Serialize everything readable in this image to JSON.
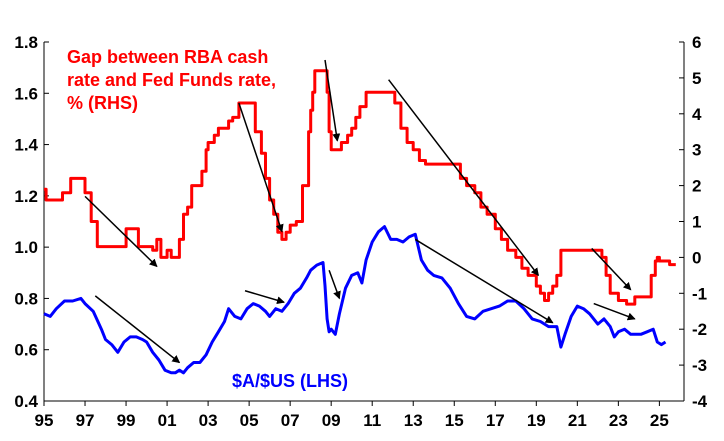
{
  "chart_data": {
    "type": "line",
    "x_ticks": [
      "95",
      "97",
      "99",
      "01",
      "03",
      "05",
      "07",
      "09",
      "11",
      "13",
      "15",
      "17",
      "19",
      "21",
      "23",
      "25"
    ],
    "x_tick_years": [
      1995,
      1997,
      1999,
      2001,
      2003,
      2005,
      2007,
      2009,
      2011,
      2013,
      2015,
      2017,
      2019,
      2021,
      2023,
      2025
    ],
    "xlim": [
      1995,
      2026.2
    ],
    "left_axis": {
      "ylim": [
        0.4,
        1.8
      ],
      "ticks": [
        "0.4",
        "0.6",
        "0.8",
        "1.0",
        "1.2",
        "1.4",
        "1.6",
        "1.8"
      ],
      "tick_values": [
        0.4,
        0.6,
        0.8,
        1.0,
        1.2,
        1.4,
        1.6,
        1.8
      ]
    },
    "right_axis": {
      "ylim": [
        -4,
        6
      ],
      "ticks": [
        "-4",
        "-3",
        "-2",
        "-1",
        "0",
        "1",
        "2",
        "3",
        "4",
        "5",
        "6"
      ],
      "tick_values": [
        -4,
        -3,
        -2,
        -1,
        0,
        1,
        2,
        3,
        4,
        5,
        6
      ]
    },
    "grid": false,
    "colors": {
      "gap": "#ff0000",
      "aud": "#0000ff",
      "arrows": "#000000"
    },
    "annotations": {
      "gap_label": [
        "Gap between RBA cash",
        "rate and Fed Funds rate,",
        "% (RHS)"
      ],
      "aud_label": "$A/$US (LHS)"
    },
    "series": [
      {
        "name": "Gap between RBA cash rate and Fed Funds rate, % (RHS)",
        "axis": "right",
        "x": [
          1995.0,
          1995.1,
          1995.3,
          1995.6,
          1995.9,
          1996.1,
          1996.3,
          1996.5,
          1996.6,
          1996.8,
          1997.0,
          1997.3,
          1997.6,
          1997.8,
          1998.0,
          1998.5,
          1998.8,
          1999.0,
          1999.3,
          1999.6,
          1999.9,
          2000.0,
          2000.3,
          2000.5,
          2000.7,
          2000.9,
          2001.0,
          2001.2,
          2001.4,
          2001.6,
          2001.8,
          2002.0,
          2002.2,
          2002.5,
          2002.7,
          2002.9,
          2003.0,
          2003.3,
          2003.5,
          2003.8,
          2004.0,
          2004.2,
          2004.5,
          2004.8,
          2005.0,
          2005.3,
          2005.6,
          2005.8,
          2006.0,
          2006.2,
          2006.4,
          2006.6,
          2006.8,
          2007.0,
          2007.3,
          2007.6,
          2007.9,
          2008.0,
          2008.1,
          2008.2,
          2008.3,
          2008.5,
          2008.7,
          2008.8,
          2008.9,
          2009.0,
          2009.2,
          2009.5,
          2009.8,
          2010.0,
          2010.2,
          2010.4,
          2010.7,
          2011.0,
          2011.5,
          2011.9,
          2012.1,
          2012.4,
          2012.7,
          2013.0,
          2013.3,
          2013.6,
          2014.0,
          2014.5,
          2015.0,
          2015.3,
          2015.6,
          2016.0,
          2016.3,
          2016.6,
          2017.0,
          2017.3,
          2017.6,
          2018.0,
          2018.3,
          2018.6,
          2019.0,
          2019.2,
          2019.4,
          2019.6,
          2019.8,
          2020.0,
          2020.2,
          2020.5,
          2021.0,
          2021.5,
          2022.0,
          2022.2,
          2022.4,
          2022.6,
          2022.8,
          2023.0,
          2023.2,
          2023.4,
          2023.6,
          2023.8,
          2024.0,
          2024.3,
          2024.6,
          2024.8,
          2024.9,
          2025.0,
          2025.2,
          2025.5,
          2025.8
        ],
        "values": [
          1.9,
          1.6,
          1.6,
          1.6,
          1.8,
          1.8,
          2.2,
          2.2,
          2.2,
          2.2,
          1.8,
          1.0,
          0.3,
          0.3,
          0.3,
          0.3,
          0.3,
          0.8,
          0.8,
          0.3,
          0.3,
          0.3,
          0.2,
          0.5,
          0.0,
          0.0,
          0.2,
          0.0,
          0.0,
          0.5,
          1.2,
          1.4,
          2.0,
          2.0,
          2.4,
          3.0,
          3.2,
          3.4,
          3.6,
          3.6,
          3.8,
          3.9,
          4.3,
          4.3,
          4.3,
          3.5,
          2.9,
          2.2,
          1.6,
          1.2,
          0.7,
          0.5,
          0.7,
          0.9,
          1.0,
          2.0,
          3.5,
          4.1,
          4.6,
          5.2,
          5.2,
          5.2,
          5.2,
          4.6,
          3.5,
          3.0,
          3.0,
          3.2,
          3.4,
          3.6,
          3.9,
          4.2,
          4.6,
          4.6,
          4.6,
          4.6,
          4.3,
          3.6,
          3.2,
          3.0,
          2.7,
          2.6,
          2.6,
          2.6,
          2.6,
          2.2,
          2.0,
          1.8,
          1.4,
          1.2,
          0.8,
          0.5,
          0.2,
          0.0,
          -0.3,
          -0.5,
          -0.8,
          -1.0,
          -1.2,
          -1.0,
          -0.8,
          -0.5,
          0.2,
          0.2,
          0.2,
          0.2,
          0.2,
          0.0,
          -0.5,
          -1.0,
          -1.0,
          -1.2,
          -1.2,
          -1.3,
          -1.3,
          -1.1,
          -1.1,
          -1.1,
          -0.5,
          -0.1,
          0.0,
          -0.1,
          -0.1,
          -0.2,
          -0.2
        ]
      },
      {
        "name": "$A/$US (LHS)",
        "axis": "left",
        "x": [
          1995.0,
          1995.3,
          1995.6,
          1996.0,
          1996.4,
          1996.8,
          1997.0,
          1997.4,
          1997.8,
          1998.0,
          1998.3,
          1998.6,
          1998.9,
          1999.2,
          1999.5,
          1999.8,
          2000.0,
          2000.3,
          2000.6,
          2000.9,
          2001.2,
          2001.4,
          2001.6,
          2001.8,
          2002.0,
          2002.3,
          2002.6,
          2002.9,
          2003.2,
          2003.5,
          2003.8,
          2004.0,
          2004.3,
          2004.6,
          2004.9,
          2005.2,
          2005.5,
          2005.8,
          2006.0,
          2006.3,
          2006.6,
          2006.9,
          2007.2,
          2007.5,
          2007.8,
          2008.0,
          2008.3,
          2008.6,
          2008.7,
          2008.8,
          2008.9,
          2009.0,
          2009.2,
          2009.4,
          2009.7,
          2010.0,
          2010.3,
          2010.5,
          2010.7,
          2011.0,
          2011.3,
          2011.6,
          2011.9,
          2012.2,
          2012.5,
          2012.8,
          2013.1,
          2013.4,
          2013.7,
          2014.0,
          2014.4,
          2014.8,
          2015.2,
          2015.6,
          2016.0,
          2016.4,
          2016.8,
          2017.2,
          2017.6,
          2018.0,
          2018.4,
          2018.8,
          2019.2,
          2019.6,
          2020.0,
          2020.2,
          2020.4,
          2020.7,
          2021.0,
          2021.3,
          2021.6,
          2022.0,
          2022.3,
          2022.6,
          2022.8,
          2023.0,
          2023.3,
          2023.6,
          2023.9,
          2024.1,
          2024.4,
          2024.7,
          2024.9,
          2025.1,
          2025.3
        ],
        "values": [
          0.74,
          0.73,
          0.76,
          0.79,
          0.79,
          0.8,
          0.78,
          0.75,
          0.68,
          0.64,
          0.62,
          0.59,
          0.63,
          0.65,
          0.65,
          0.64,
          0.63,
          0.59,
          0.56,
          0.52,
          0.51,
          0.51,
          0.52,
          0.51,
          0.53,
          0.55,
          0.55,
          0.58,
          0.63,
          0.67,
          0.71,
          0.76,
          0.73,
          0.72,
          0.76,
          0.78,
          0.77,
          0.75,
          0.73,
          0.76,
          0.75,
          0.78,
          0.82,
          0.84,
          0.88,
          0.91,
          0.93,
          0.94,
          0.85,
          0.72,
          0.67,
          0.68,
          0.66,
          0.74,
          0.84,
          0.89,
          0.9,
          0.86,
          0.95,
          1.02,
          1.06,
          1.08,
          1.03,
          1.03,
          1.02,
          1.04,
          1.05,
          0.95,
          0.91,
          0.89,
          0.88,
          0.84,
          0.78,
          0.73,
          0.72,
          0.75,
          0.76,
          0.77,
          0.79,
          0.79,
          0.76,
          0.72,
          0.71,
          0.69,
          0.69,
          0.61,
          0.66,
          0.73,
          0.77,
          0.76,
          0.74,
          0.7,
          0.72,
          0.69,
          0.65,
          0.67,
          0.68,
          0.66,
          0.66,
          0.66,
          0.67,
          0.68,
          0.63,
          0.62,
          0.63
        ]
      }
    ],
    "arrows": [
      {
        "from": [
          1997.0,
          1.7
        ],
        "to": [
          2000.5,
          -0.25
        ],
        "axis": "right"
      },
      {
        "from": [
          1997.5,
          0.81
        ],
        "to": [
          2001.6,
          0.55
        ],
        "axis": "left"
      },
      {
        "from": [
          2004.5,
          4.3
        ],
        "to": [
          2006.6,
          0.72
        ],
        "axis": "right"
      },
      {
        "from": [
          2004.8,
          0.83
        ],
        "to": [
          2006.7,
          0.785
        ],
        "axis": "left"
      },
      {
        "from": [
          2008.7,
          5.5
        ],
        "to": [
          2009.3,
          3.25
        ],
        "axis": "right"
      },
      {
        "from": [
          2008.9,
          0.91
        ],
        "to": [
          2009.4,
          0.8
        ],
        "axis": "left"
      },
      {
        "from": [
          2011.8,
          4.95
        ],
        "to": [
          2019.1,
          -0.5
        ],
        "axis": "right"
      },
      {
        "from": [
          2013.1,
          1.03
        ],
        "to": [
          2019.8,
          0.705
        ],
        "axis": "left"
      },
      {
        "from": [
          2021.7,
          0.25
        ],
        "to": [
          2023.6,
          -0.9
        ],
        "axis": "right"
      },
      {
        "from": [
          2021.8,
          0.78
        ],
        "to": [
          2023.8,
          0.72
        ],
        "axis": "left"
      }
    ]
  }
}
